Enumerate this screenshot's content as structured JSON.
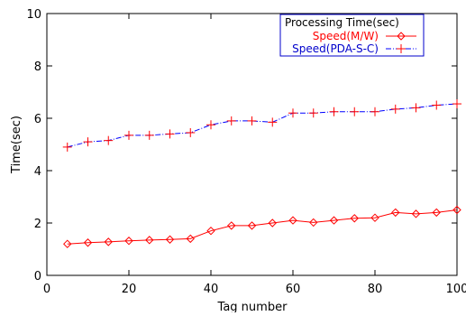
{
  "chart_data": {
    "type": "line",
    "title": "",
    "xlabel": "Tag number",
    "ylabel": "Time(sec)",
    "xlim": [
      0,
      100
    ],
    "ylim": [
      0,
      10
    ],
    "xticks": [
      0,
      20,
      40,
      60,
      80,
      100
    ],
    "yticks": [
      0,
      2,
      4,
      6,
      8,
      10
    ],
    "grid": false,
    "legend": {
      "title": "Processing Time(sec)",
      "position": "top-right"
    },
    "x": [
      5,
      10,
      15,
      20,
      25,
      30,
      35,
      40,
      45,
      50,
      55,
      60,
      65,
      70,
      75,
      80,
      85,
      90,
      95,
      100
    ],
    "series": [
      {
        "name": "Speed(M/W)",
        "color": "#ff0000",
        "line_style": "solid",
        "marker": "diamond",
        "values": [
          1.2,
          1.25,
          1.28,
          1.32,
          1.35,
          1.37,
          1.4,
          1.7,
          1.9,
          1.9,
          2.0,
          2.1,
          2.02,
          2.1,
          2.18,
          2.2,
          2.4,
          2.35,
          2.4,
          2.5
        ]
      },
      {
        "name": "Speed(PDA-S-C)",
        "color": "#ff0000",
        "line_color": "#0000ff",
        "line_style": "dash-dot",
        "marker": "plus",
        "values": [
          4.9,
          5.1,
          5.15,
          5.35,
          5.35,
          5.4,
          5.45,
          5.75,
          5.9,
          5.9,
          5.85,
          6.2,
          6.2,
          6.25,
          6.25,
          6.25,
          6.35,
          6.4,
          6.5,
          6.55
        ]
      }
    ]
  }
}
